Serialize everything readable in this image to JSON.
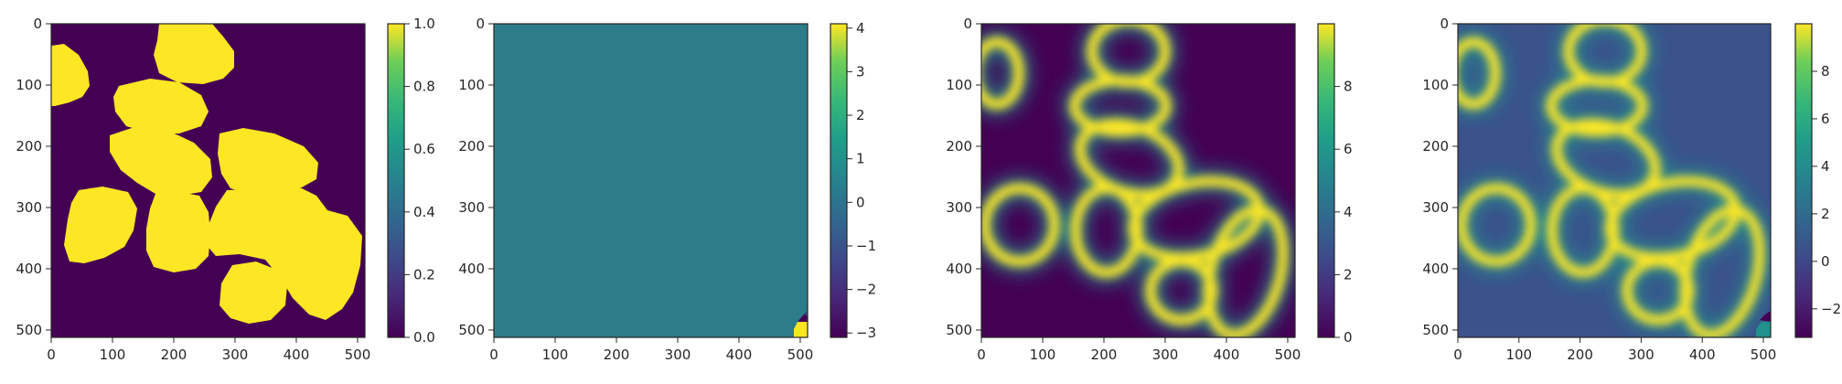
{
  "colors": {
    "viridis_dark": "#440154",
    "viridis_yellow": "#fde725",
    "teal_mid": "#2c7c8a",
    "blue_mid": "#3b528b",
    "axis": "#262626"
  },
  "chart_data": [
    {
      "type": "heatmap",
      "title": "",
      "xlabel": "",
      "ylabel": "",
      "xlim": [
        0,
        512
      ],
      "ylim": [
        512,
        0
      ],
      "xticks": [
        "0",
        "100",
        "200",
        "300",
        "400",
        "500"
      ],
      "yticks": [
        "0",
        "100",
        "200",
        "300",
        "400",
        "500"
      ],
      "colorbar": {
        "range": [
          0,
          1
        ],
        "ticks": [
          "0.0",
          "0.2",
          "0.4",
          "0.6",
          "0.8",
          "1.0"
        ]
      },
      "content": "binary mask of blobs (0 = background, 1 = blob)"
    },
    {
      "type": "heatmap",
      "title": "",
      "xlabel": "",
      "ylabel": "",
      "xlim": [
        0,
        512
      ],
      "ylim": [
        512,
        0
      ],
      "xticks": [
        "0",
        "100",
        "200",
        "300",
        "400",
        "500"
      ],
      "yticks": [
        "0",
        "100",
        "200",
        "300",
        "400",
        "500"
      ],
      "colorbar": {
        "range": [
          -3.1,
          4.1
        ],
        "ticks": [
          "4",
          "3",
          "2",
          "1",
          "0",
          "−1",
          "−2",
          "−3"
        ]
      },
      "content": "nearly uniform field at 0 with a small extreme patch near the bottom-right corner"
    },
    {
      "type": "heatmap",
      "title": "",
      "xlabel": "",
      "ylabel": "",
      "xlim": [
        0,
        512
      ],
      "ylim": [
        512,
        0
      ],
      "xticks": [
        "0",
        "100",
        "200",
        "300",
        "400",
        "500"
      ],
      "yticks": [
        "0",
        "100",
        "200",
        "300",
        "400",
        "500"
      ],
      "colorbar": {
        "range": [
          0,
          10
        ],
        "ticks": [
          "8",
          "6",
          "4",
          "2",
          "0"
        ]
      },
      "content": "blurred blob boundaries (bright rings) on dark background"
    },
    {
      "type": "heatmap",
      "title": "",
      "xlabel": "",
      "ylabel": "",
      "xlim": [
        0,
        512
      ],
      "ylim": [
        512,
        0
      ],
      "xticks": [
        "0",
        "100",
        "200",
        "300",
        "400",
        "500"
      ],
      "yticks": [
        "0",
        "100",
        "200",
        "300",
        "400",
        "500"
      ],
      "colorbar": {
        "range": [
          -3.2,
          10
        ],
        "ticks": [
          "8",
          "6",
          "4",
          "2",
          "0",
          "−2"
        ]
      },
      "content": "blurred blob boundaries (bright rings) on blue background with small corner patch"
    }
  ]
}
